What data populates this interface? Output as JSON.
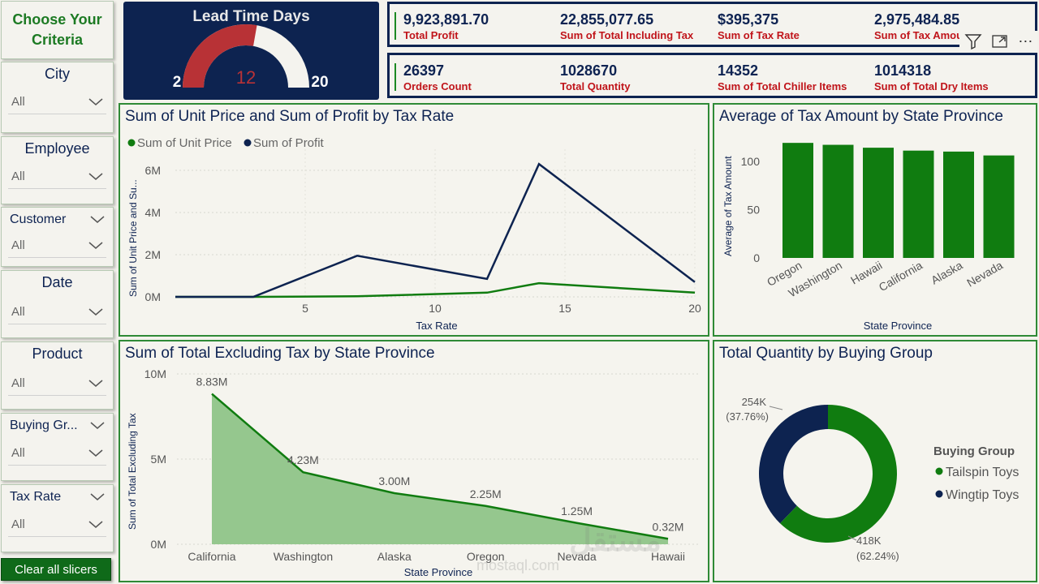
{
  "sidebar": {
    "title": "Choose Your Criteria",
    "slicers": [
      {
        "title": "City",
        "value": "All"
      },
      {
        "title": "Employee",
        "value": "All"
      },
      {
        "title": "Customer",
        "value": "All"
      },
      {
        "title": "Date",
        "value": "All"
      },
      {
        "title": "Product",
        "value": "All"
      },
      {
        "title": "Buying Gr...",
        "value": "All"
      },
      {
        "title": "Tax Rate",
        "value": "All"
      }
    ],
    "clear_label": "Clear all slicers"
  },
  "gauge": {
    "title": "Lead Time Days",
    "min": 2,
    "max": 20,
    "value": 12,
    "min_label": "2",
    "max_label": "20",
    "value_label": "12"
  },
  "kpis_row1": [
    {
      "value": "9,923,891.70",
      "label": "Total Profit"
    },
    {
      "value": "22,855,077.65",
      "label": "Sum of Total Including Tax"
    },
    {
      "value": "$395,375",
      "label": "Sum of Tax Rate"
    },
    {
      "value": "2,975,484.85",
      "label": "Sum of Tax Amount"
    }
  ],
  "kpis_row2": [
    {
      "value": "26397",
      "label": "Orders Count"
    },
    {
      "value": "1028670",
      "label": "Total Quantity"
    },
    {
      "value": "14352",
      "label": "Sum of Total Chiller Items"
    },
    {
      "value": "1014318",
      "label": "Sum of Total Dry Items"
    }
  ],
  "toolbar": {
    "icons": [
      "filter-icon",
      "focus-mode-icon",
      "more-options-icon"
    ],
    "more_label": "⋯"
  },
  "colors": {
    "green": "#107c10",
    "navy": "#0d2350",
    "red": "#b83236",
    "area": "#95c78e",
    "label_red": "#c0141a"
  },
  "charts": {
    "line": {
      "title": "Sum of Unit Price and Sum of Profit by Tax Rate",
      "ylabel": "Sum of Unit Price and Su...",
      "xlabel": "Tax Rate",
      "legend": [
        "Sum of Unit Price",
        "Sum of Profit"
      ],
      "xticks": [
        "5",
        "10",
        "15",
        "20"
      ],
      "yticks": [
        "0M",
        "2M",
        "4M",
        "6M"
      ]
    },
    "bar": {
      "title": "Average of Tax Amount by State Province",
      "ylabel": "Average of Tax Amount",
      "xlabel": "State Province",
      "categories": [
        "Oregon",
        "Washington",
        "Hawaii",
        "California",
        "Alaska",
        "Nevada"
      ],
      "yticks": [
        "0",
        "50",
        "100"
      ]
    },
    "area": {
      "title": "Sum of Total Excluding Tax by State Province",
      "ylabel": "Sum of Total Excluding Tax",
      "xlabel": "State Province",
      "categories": [
        "California",
        "Washington",
        "Alaska",
        "Oregon",
        "Nevada",
        "Hawaii"
      ],
      "labels": [
        "8.83M",
        "4.23M",
        "3.00M",
        "2.25M",
        "1.25M",
        "0.32M"
      ],
      "yticks": [
        "0M",
        "5M",
        "10M"
      ]
    },
    "donut": {
      "title": "Total Quantity by Buying Group",
      "legend_title": "Buying Group",
      "legend": [
        "Tailspin Toys",
        "Wingtip Toys"
      ],
      "label_wingtip_value": "254K",
      "label_wingtip_pct": "(37.76%)",
      "label_tailspin_value": "418K",
      "label_tailspin_pct": "(62.24%)"
    }
  },
  "watermark": {
    "arabic": "مستقل",
    "latin": "mostaql.com"
  },
  "chart_data": [
    {
      "type": "line",
      "title": "Sum of Unit Price and Sum of Profit by Tax Rate",
      "xlabel": "Tax Rate",
      "ylabel": "Sum of Unit Price and Su...",
      "x": [
        0,
        3,
        7,
        12,
        14,
        20
      ],
      "ylim": [
        0,
        7000000
      ],
      "xlim": [
        0,
        20
      ],
      "series": [
        {
          "name": "Sum of Unit Price",
          "values": [
            0,
            0,
            30000,
            200000,
            650000,
            200000
          ]
        },
        {
          "name": "Sum of Profit",
          "values": [
            0,
            0,
            1950000,
            850000,
            6300000,
            700000
          ]
        }
      ],
      "grid": true,
      "legend": "top-left"
    },
    {
      "type": "bar",
      "title": "Average of Tax Amount by State Province",
      "xlabel": "State Province",
      "ylabel": "Average of Tax Amount",
      "categories": [
        "Oregon",
        "Washington",
        "Hawaii",
        "California",
        "Alaska",
        "Nevada"
      ],
      "values": [
        119,
        117,
        114,
        111,
        110,
        106
      ],
      "ylim": [
        0,
        125
      ]
    },
    {
      "type": "area",
      "title": "Sum of Total Excluding Tax by State Province",
      "xlabel": "State Province",
      "ylabel": "Sum of Total Excluding Tax",
      "categories": [
        "California",
        "Washington",
        "Alaska",
        "Oregon",
        "Nevada",
        "Hawaii"
      ],
      "values": [
        8830000,
        4230000,
        3000000,
        2250000,
        1250000,
        320000
      ],
      "ylim": [
        0,
        10000000
      ]
    },
    {
      "type": "pie",
      "title": "Total Quantity by Buying Group",
      "categories": [
        "Tailspin Toys",
        "Wingtip Toys"
      ],
      "values": [
        418000,
        254000
      ],
      "percent": [
        62.24,
        37.76
      ],
      "legend": "right"
    }
  ]
}
